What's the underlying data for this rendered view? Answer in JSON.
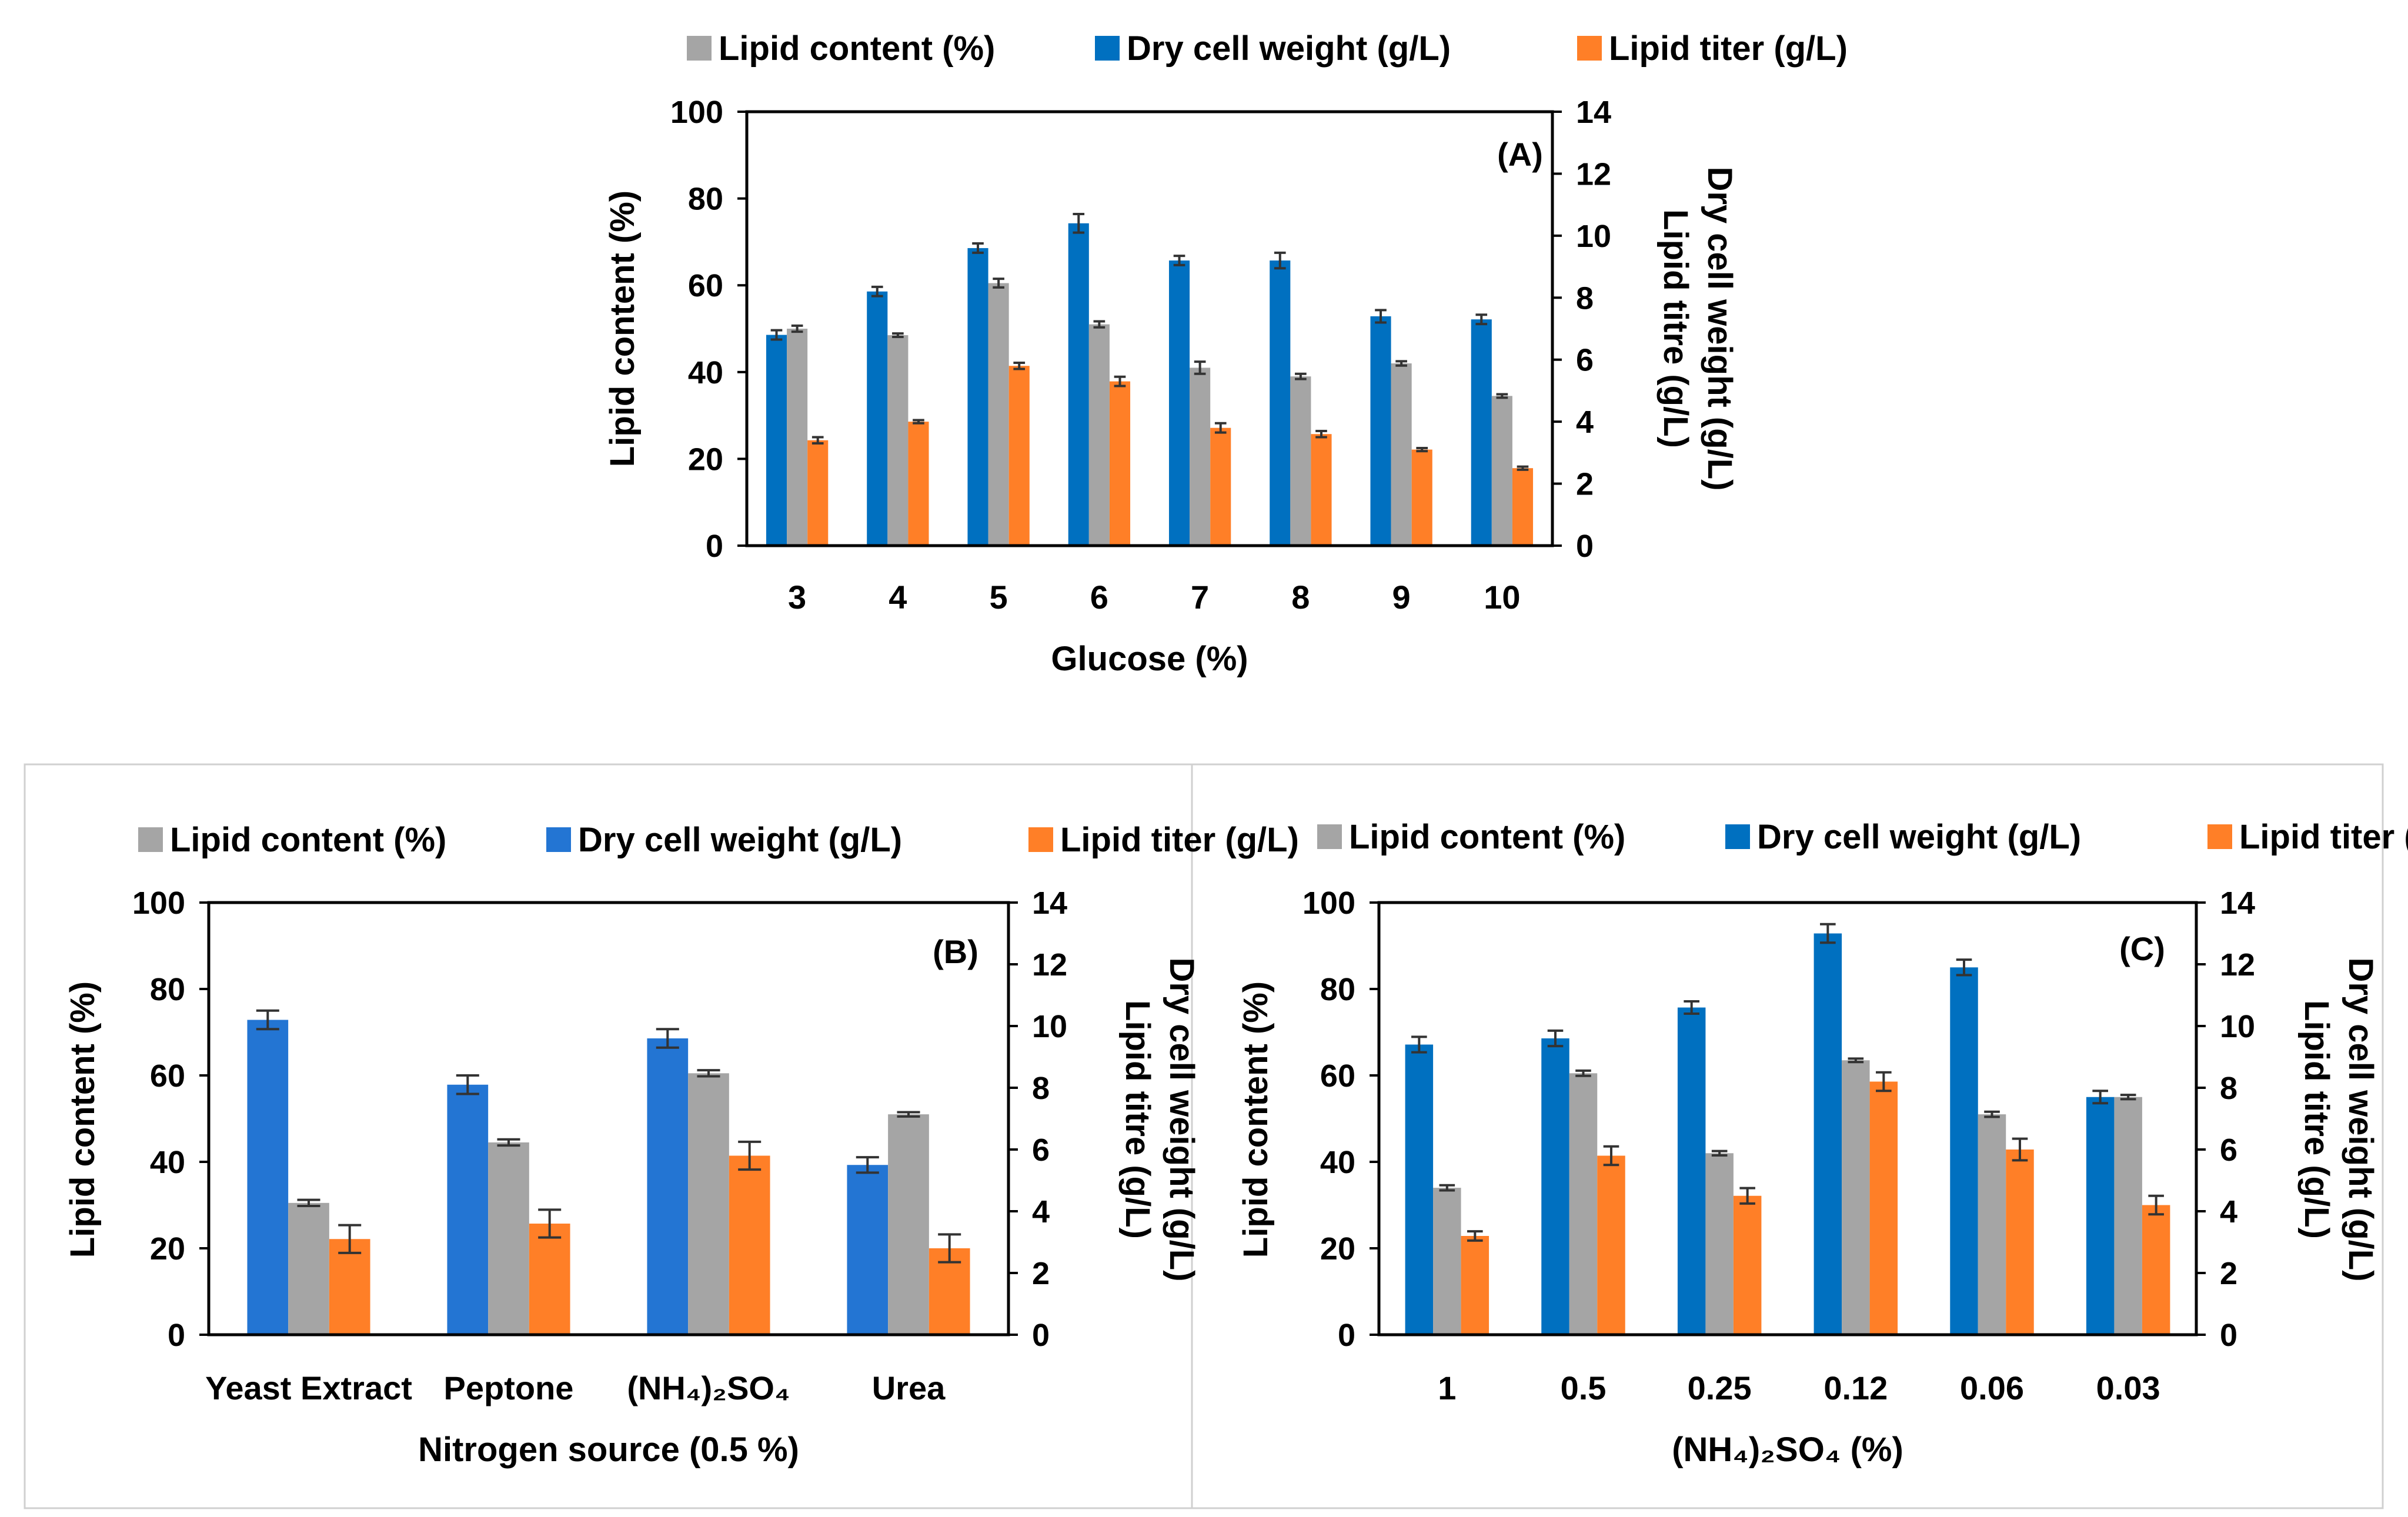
{
  "colors": {
    "lipid_content": "#a5a5a5",
    "dry_cell_weight_a": "#0070c0",
    "dry_cell_weight_b": "#2375d3",
    "dry_cell_weight_c": "#0070c0",
    "lipid_titer": "#ff7f27"
  },
  "chart_data": [
    {
      "id": "A",
      "type": "bar",
      "panel_label": "(A)",
      "legend": [
        "Lipid content (%)",
        "Dry cell weight (g/L)",
        "Lipid titer (g/L)"
      ],
      "xlabel": "Glucose (%)",
      "ylabel_left": "Lipid content (%)",
      "ylabel_right": [
        "Dry cell weight (g/L)",
        "Lipid titre (g/L)"
      ],
      "ylim_left": [
        0,
        100
      ],
      "ylim_right": [
        0,
        14
      ],
      "yticks_left": [
        "0",
        "20",
        "40",
        "60",
        "80",
        "100"
      ],
      "yticks_right": [
        "0",
        "2",
        "4",
        "6",
        "8",
        "10",
        "12",
        "14"
      ],
      "categories": [
        "3",
        "4",
        "5",
        "6",
        "7",
        "8",
        "9",
        "10"
      ],
      "series": [
        {
          "name": "Dry cell weight (g/L)",
          "axis": "right",
          "values": [
            6.8,
            8.2,
            9.6,
            10.4,
            9.2,
            9.2,
            7.4,
            7.3
          ],
          "errors": [
            0.15,
            0.15,
            0.15,
            0.3,
            0.15,
            0.25,
            0.2,
            0.15
          ]
        },
        {
          "name": "Lipid content (%)",
          "axis": "left",
          "values": [
            50,
            48.5,
            60.5,
            51,
            41,
            39,
            42,
            34.5
          ],
          "errors": [
            0.7,
            0.4,
            1,
            0.7,
            1.4,
            0.6,
            0.5,
            0.4
          ]
        },
        {
          "name": "Lipid titer (g/L)",
          "axis": "right",
          "values": [
            3.4,
            4.0,
            5.8,
            5.3,
            3.8,
            3.6,
            3.1,
            2.5
          ],
          "errors": [
            0.1,
            0.05,
            0.1,
            0.15,
            0.15,
            0.1,
            0.05,
            0.05
          ]
        }
      ]
    },
    {
      "id": "B",
      "type": "bar",
      "panel_label": "(B)",
      "legend": [
        "Lipid content (%)",
        "Dry cell weight (g/L)",
        "Lipid titer (g/L)"
      ],
      "xlabel": "Nitrogen source (0.5 %)",
      "ylabel_left": "Lipid content (%)",
      "ylabel_right": [
        "Dry cell weight (g/L)",
        "Lipid titre (g/L)"
      ],
      "ylim_left": [
        0,
        100
      ],
      "ylim_right": [
        0,
        14
      ],
      "yticks_left": [
        "0",
        "20",
        "40",
        "60",
        "80",
        "100"
      ],
      "yticks_right": [
        "0",
        "2",
        "4",
        "6",
        "8",
        "10",
        "12",
        "14"
      ],
      "categories": [
        "Yeast Extract",
        "Peptone",
        "(NH₄)₂SO₄",
        "Urea"
      ],
      "series": [
        {
          "name": "Dry cell weight (g/L)",
          "axis": "right",
          "values": [
            10.2,
            8.1,
            9.6,
            5.5
          ],
          "errors": [
            0.3,
            0.3,
            0.3,
            0.25
          ]
        },
        {
          "name": "Lipid content (%)",
          "axis": "left",
          "values": [
            30.5,
            44.5,
            60.5,
            51
          ],
          "errors": [
            0.7,
            0.7,
            0.7,
            0.5
          ]
        },
        {
          "name": "Lipid titer (g/L)",
          "axis": "right",
          "values": [
            3.1,
            3.6,
            5.8,
            2.8
          ],
          "errors": [
            0.45,
            0.45,
            0.45,
            0.45
          ]
        }
      ]
    },
    {
      "id": "C",
      "type": "bar",
      "panel_label": "(C)",
      "legend": [
        "Lipid content (%)",
        "Dry cell weight (g/L)",
        "Lipid titer (g/L)"
      ],
      "xlabel": "(NH₄)₂SO₄ (%)",
      "ylabel_left": "Lipid content (%)",
      "ylabel_right": [
        "Dry cell weight (g/L)",
        "Lipid titre (g/L)"
      ],
      "ylim_left": [
        0,
        100
      ],
      "ylim_right": [
        0,
        14
      ],
      "yticks_left": [
        "0",
        "20",
        "40",
        "60",
        "80",
        "100"
      ],
      "yticks_right": [
        "0",
        "2",
        "4",
        "6",
        "8",
        "10",
        "12",
        "14"
      ],
      "categories": [
        "1",
        "0.5",
        "0.25",
        "0.12",
        "0.06",
        "0.03"
      ],
      "series": [
        {
          "name": "Dry cell weight (g/L)",
          "axis": "right",
          "values": [
            9.4,
            9.6,
            10.6,
            13.0,
            11.9,
            7.7
          ],
          "errors": [
            0.25,
            0.25,
            0.2,
            0.3,
            0.25,
            0.2
          ]
        },
        {
          "name": "Lipid content (%)",
          "axis": "left",
          "values": [
            34,
            60.5,
            42,
            63.5,
            51,
            55
          ],
          "errors": [
            0.6,
            0.6,
            0.5,
            0.4,
            0.6,
            0.5
          ]
        },
        {
          "name": "Lipid titer (g/L)",
          "axis": "right",
          "values": [
            3.2,
            5.8,
            4.5,
            8.2,
            6.0,
            4.2
          ],
          "errors": [
            0.15,
            0.3,
            0.25,
            0.3,
            0.35,
            0.3
          ]
        }
      ]
    }
  ]
}
